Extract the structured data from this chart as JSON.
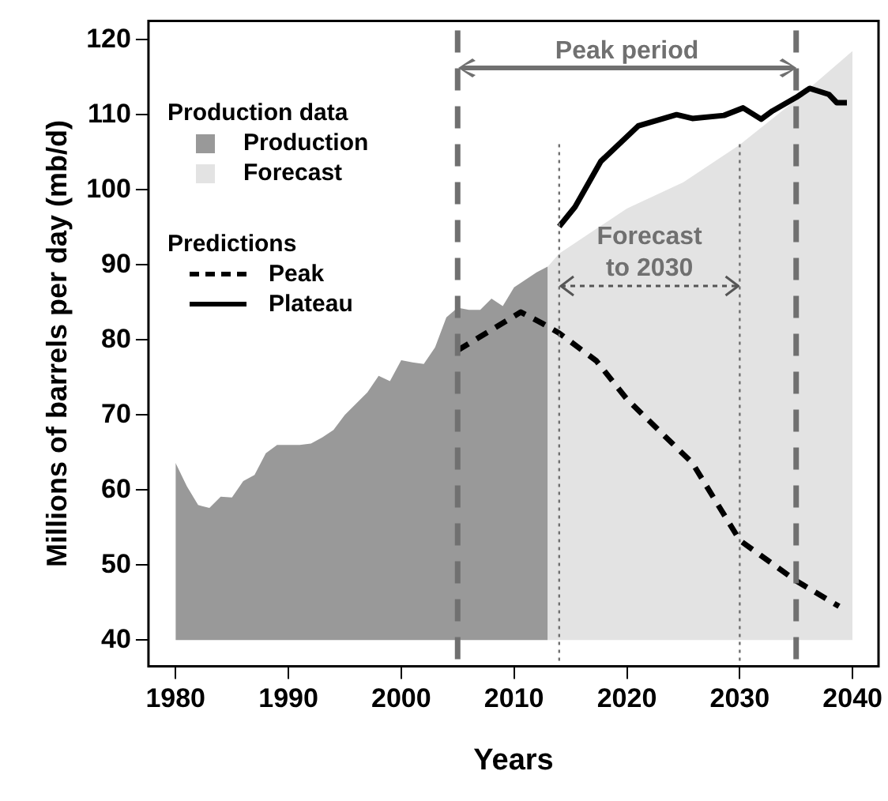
{
  "chart_data": {
    "type": "area",
    "xlabel": "Years",
    "ylabel": "Millions of barrels per day (mb/d)",
    "legend_title": "Production data",
    "legend": "top left",
    "grid": false,
    "xlim": [
      1977.6,
      2042.3
    ],
    "xticks": [
      1980,
      1990,
      2000,
      2010,
      2020,
      2030,
      2040
    ],
    "ylim": [
      36.5,
      122.5
    ],
    "yticks": [
      40,
      50,
      60,
      70,
      80,
      90,
      100,
      110,
      120
    ],
    "series": [
      {
        "name": "Production",
        "color": "#999999",
        "x": [
          1980,
          1981,
          1982,
          1983,
          1984,
          1985,
          1986,
          1987,
          1988,
          1989,
          1990,
          1991,
          1992,
          1993,
          1994,
          1995,
          1996,
          1997,
          1998,
          1999,
          2000,
          2001,
          2002,
          2003,
          2004,
          2005,
          2006,
          2007,
          2008,
          2009,
          2010,
          2011,
          2012,
          2013
        ],
        "values": [
          63.6,
          60.5,
          58,
          57.6,
          59.1,
          59,
          61.2,
          62,
          64.9,
          66,
          66,
          66,
          66.2,
          67,
          68,
          70,
          71.5,
          73,
          75.2,
          74.5,
          77.3,
          77,
          76.8,
          79,
          83,
          84.3,
          84,
          84,
          85.5,
          84.5,
          87,
          88,
          89,
          89.8
        ]
      },
      {
        "name": "Forecast",
        "color": "#e3e3e3",
        "x": [
          2013,
          2014,
          2020,
          2025,
          2030,
          2035,
          2040
        ],
        "values": [
          89.8,
          91.5,
          97.5,
          101,
          106,
          112,
          118.5
        ]
      },
      {
        "name": "Peak",
        "type": "line",
        "color": "#000000",
        "line_style": "dashed",
        "x": [
          2005,
          2010.6,
          2012.5,
          2014,
          2017.3,
          2020,
          2025.8,
          2030,
          2035,
          2038.8
        ],
        "values": [
          78.6,
          83.7,
          82.2,
          80.9,
          77.2,
          72.1,
          63.6,
          53.3,
          47.9,
          44.5
        ]
      },
      {
        "name": "Plateau",
        "type": "line",
        "color": "#000000",
        "line_style": "solid",
        "x": [
          2014,
          2015.4,
          2017.7,
          2021,
          2024.4,
          2025.8,
          2028.6,
          2030.3,
          2031.9,
          2032.9,
          2035,
          2036.2,
          2037.9,
          2038.6,
          2039.5
        ],
        "values": [
          95.1,
          97.7,
          103.8,
          108.5,
          110,
          109.5,
          109.9,
          110.9,
          109.4,
          110.5,
          112.3,
          113.5,
          112.7,
          111.6,
          111.6
        ]
      }
    ],
    "ref_lines": [
      {
        "axis": "x",
        "value": 2005,
        "color": "#707070",
        "line_style": "dashed"
      },
      {
        "axis": "x",
        "value": 2035,
        "color": "#707070",
        "line_style": "dashed"
      },
      {
        "axis": "x",
        "value": 2014,
        "color": "#707070",
        "line_style": "dotted"
      },
      {
        "axis": "x",
        "value": 2030,
        "color": "#707070",
        "line_style": "dotted"
      }
    ],
    "annotations": [
      "Peak period",
      "Forecast\nto 2030",
      "Predictions"
    ]
  }
}
